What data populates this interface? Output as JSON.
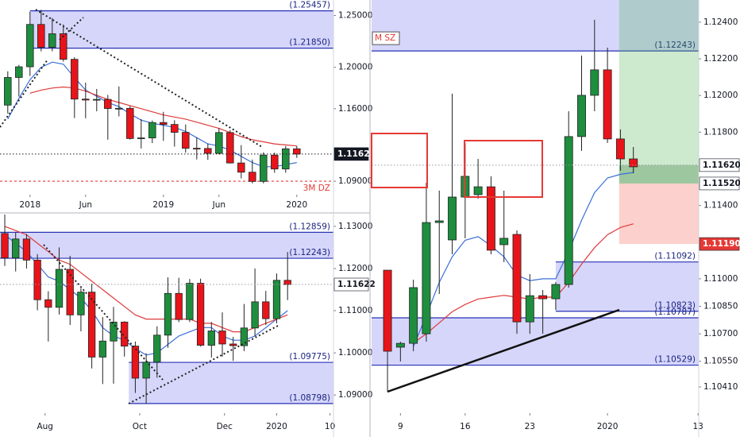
{
  "chart_data": [
    {
      "type": "candlestick",
      "categories": [
        null,
        null,
        null,
        null,
        null,
        null,
        null,
        null,
        null,
        null,
        null,
        null,
        null,
        null,
        null,
        null,
        null,
        null,
        null,
        null,
        null,
        null,
        null,
        null,
        null,
        null,
        null
      ],
      "open": [
        1.1635,
        1.1902,
        1.2005,
        1.2414,
        1.2193,
        1.2324,
        1.2077,
        1.1693,
        1.1684,
        1.169,
        1.1602,
        1.1604,
        1.1312,
        1.1318,
        1.1467,
        1.1448,
        1.1372,
        1.1218,
        1.1216,
        1.1169,
        1.137,
        1.1076,
        1.0987,
        1.0898,
        1.1152,
        1.1018,
        1.1213
      ],
      "high": [
        1.1961,
        1.2023,
        1.2537,
        1.2555,
        1.2476,
        1.2414,
        1.2097,
        1.1852,
        1.1791,
        1.1733,
        1.1815,
        1.1625,
        1.15,
        1.1486,
        1.157,
        1.1489,
        1.1448,
        1.1324,
        1.1264,
        1.1412,
        1.1393,
        1.1249,
        1.1109,
        1.1179,
        1.1176,
        1.124,
        1.1239
      ],
      "low": [
        1.1554,
        1.1718,
        1.1916,
        1.2154,
        1.2155,
        1.2055,
        1.151,
        1.1508,
        1.1575,
        1.1301,
        1.1526,
        1.1302,
        1.1216,
        1.1268,
        1.1289,
        1.1234,
        1.1176,
        1.111,
        1.1106,
        1.116,
        1.1071,
        1.0927,
        1.0879,
        1.0879,
        1.0981,
        1.0981,
        1.1125
      ],
      "close": [
        1.1902,
        1.2005,
        1.2414,
        1.2193,
        1.2324,
        1.2077,
        1.1693,
        1.1684,
        1.169,
        1.1602,
        1.1604,
        1.1312,
        1.1318,
        1.1467,
        1.1448,
        1.1372,
        1.1218,
        1.1216,
        1.1169,
        1.137,
        1.1076,
        1.0987,
        1.0898,
        1.1152,
        1.1018,
        1.1213,
        1.1162
      ],
      "up_color": "#1e8e3e",
      "down_color": "#e8141a",
      "lines": [
        {
          "color": "#3a6fd8",
          "values": [
            1.15,
            1.17,
            1.188,
            1.2,
            1.205,
            1.203,
            1.19,
            1.178,
            1.172,
            1.166,
            1.162,
            1.155,
            1.149,
            1.146,
            1.144,
            1.142,
            1.138,
            1.132,
            1.126,
            1.124,
            1.12,
            1.114,
            1.108,
            1.104,
            1.104,
            1.106,
            1.108
          ]
        },
        {
          "color": "#e03a3a",
          "values": [
            null,
            null,
            1.175,
            1.178,
            1.18,
            1.181,
            1.18,
            1.177,
            1.173,
            1.169,
            1.166,
            1.163,
            1.16,
            1.157,
            1.154,
            1.152,
            1.15,
            1.147,
            1.144,
            1.141,
            1.137,
            1.133,
            1.13,
            1.128,
            1.126,
            1.125,
            1.124
          ]
        }
      ],
      "zones": [
        {
          "top": {
            "value": 1.25457,
            "label": "(1.25457)"
          },
          "bottom": {
            "value": 1.2185,
            "label": "(1.21850)"
          },
          "from": 2,
          "fill": "#b4b4f7",
          "stroke": "#2832b4"
        }
      ],
      "levels": [
        {
          "value": 1.09,
          "label": "3M DZ",
          "color": "#e53935"
        }
      ],
      "last": 1.11622,
      "xlim": [
        -0.7,
        29.3
      ],
      "ylim": [
        1.077,
        1.265
      ],
      "xticks": [
        {
          "value": 2,
          "label": "2018"
        },
        {
          "value": 7,
          "label": "Jun"
        },
        {
          "value": 14,
          "label": "2019"
        },
        {
          "value": 19,
          "label": "Jun"
        },
        {
          "value": 26,
          "label": "2020"
        }
      ],
      "yticks": [
        {
          "value": 1.25,
          "label": "1.25000"
        },
        {
          "value": 1.2,
          "label": "1.20000"
        },
        {
          "value": 1.16,
          "label": "1.16000"
        },
        {
          "value": 1.09,
          "label": "1.09000"
        }
      ]
    },
    {
      "type": "candlestick",
      "categories": [
        null,
        null,
        null,
        null,
        null,
        null,
        null,
        null,
        null,
        null,
        null,
        null,
        null,
        null,
        null,
        null,
        null,
        null,
        null,
        null,
        null,
        null,
        null,
        null,
        null,
        null,
        null
      ],
      "open": [
        1.1283,
        1.1225,
        1.127,
        1.122,
        1.1126,
        1.1108,
        1.1198,
        1.109,
        1.1144,
        1.099,
        1.1028,
        1.1073,
        1.1016,
        1.094,
        1.0978,
        1.1042,
        1.1141,
        1.1079,
        1.1165,
        1.1018,
        1.1052,
        1.1021,
        1.1017,
        1.1059,
        1.1121,
        1.1081,
        1.1172
      ],
      "high": [
        1.1336,
        1.1286,
        1.1282,
        1.1234,
        1.1146,
        1.125,
        1.123,
        1.1153,
        1.1164,
        1.1085,
        1.1109,
        1.1075,
        1.1027,
        1.0999,
        1.1063,
        1.1179,
        1.1178,
        1.1175,
        1.1176,
        1.1073,
        1.1096,
        1.1038,
        1.1116,
        1.12,
        1.1147,
        1.1188,
        1.1239
      ],
      "low": [
        1.1206,
        1.1193,
        1.12,
        1.1101,
        1.1027,
        1.1091,
        1.1066,
        1.1051,
        1.0963,
        1.0926,
        1.0927,
        1.0991,
        1.0905,
        1.0879,
        1.0941,
        1.1012,
        1.1073,
        1.1073,
        1.1015,
        1.0989,
        1.0991,
        1.0981,
        1.1004,
        1.1039,
        1.1066,
        1.107,
        1.1125
      ],
      "close": [
        1.1225,
        1.127,
        1.122,
        1.1126,
        1.1108,
        1.1198,
        1.109,
        1.1144,
        1.099,
        1.1028,
        1.1073,
        1.1016,
        1.094,
        1.0978,
        1.1042,
        1.1141,
        1.1079,
        1.1165,
        1.1018,
        1.1052,
        1.1021,
        1.1017,
        1.1059,
        1.1121,
        1.1081,
        1.1172,
        1.1162
      ],
      "up_color": "#1e8e3e",
      "down_color": "#e8141a",
      "lines": [
        {
          "color": "#3a6fd8",
          "values": [
            1.128,
            1.126,
            1.124,
            1.121,
            1.118,
            1.117,
            1.115,
            1.113,
            1.11,
            1.106,
            1.104,
            1.103,
            1.101,
            1.0995,
            1.1,
            1.102,
            1.104,
            1.105,
            1.106,
            1.106,
            1.104,
            1.103,
            1.103,
            1.104,
            1.106,
            1.108,
            1.11
          ]
        },
        {
          "color": "#e03a3a",
          "values": [
            1.13,
            1.129,
            1.128,
            1.126,
            1.124,
            1.122,
            1.121,
            1.119,
            1.117,
            1.115,
            1.113,
            1.111,
            1.109,
            1.108,
            1.108,
            1.108,
            1.108,
            1.108,
            1.107,
            1.107,
            1.106,
            1.105,
            1.105,
            1.106,
            1.107,
            1.108,
            1.109
          ]
        }
      ],
      "zones": [
        {
          "top": {
            "value": 1.12859,
            "label": "(1.12859)"
          },
          "bottom": {
            "value": 1.12243,
            "label": "(1.12243)"
          },
          "fill": "#b4b4f7",
          "stroke": "#2832b4"
        },
        {
          "top": {
            "value": 1.09775,
            "label": "(1.09775)"
          },
          "bottom": {
            "value": 1.08798,
            "label": "(1.08798)"
          },
          "from": 11.4,
          "fill": "#b4b4f7",
          "stroke": "#2832b4"
        }
      ],
      "levels": [],
      "last": 1.11622,
      "xlim": [
        -0.44,
        30.22
      ],
      "ylim": [
        1.0857,
        1.1328
      ],
      "xticks": [
        {
          "value": 3.7,
          "label": "Aug"
        },
        {
          "value": 12.4,
          "label": "Oct"
        },
        {
          "value": 20.2,
          "label": "Dec"
        },
        {
          "value": 25,
          "label": "2020"
        },
        {
          "value": 29.9,
          "label": "10"
        }
      ],
      "yticks": [
        {
          "value": 1.13,
          "label": "1.13000"
        },
        {
          "value": 1.12,
          "label": "1.12000"
        },
        {
          "value": 1.11,
          "label": "1.11000"
        },
        {
          "value": 1.1,
          "label": "1.10000"
        },
        {
          "value": 1.09,
          "label": "1.09000"
        }
      ]
    },
    {
      "type": "candlestick",
      "categories": [
        null,
        null,
        null,
        null,
        null,
        null,
        null,
        null,
        null,
        null,
        null,
        null,
        null,
        null,
        null,
        null,
        null,
        null,
        null,
        null
      ],
      "open": [
        1.11047,
        1.10627,
        1.10648,
        1.107,
        1.11307,
        1.11212,
        1.11446,
        1.11459,
        1.11502,
        1.11186,
        1.11242,
        1.10765,
        1.10908,
        1.10891,
        1.10969,
        1.11776,
        1.12001,
        1.1214,
        1.11763,
        1.11654
      ],
      "high": [
        1.11047,
        1.10657,
        1.10995,
        1.11524,
        1.11481,
        1.1201,
        1.11741,
        1.11654,
        1.11559,
        1.11481,
        1.11264,
        1.11026,
        1.10939,
        1.10982,
        1.11914,
        1.12218,
        1.12413,
        1.12261,
        1.11815,
        1.11719
      ],
      "low": [
        1.10384,
        1.10549,
        1.10605,
        1.10657,
        1.10917,
        1.11134,
        1.11221,
        1.11437,
        1.11134,
        1.11091,
        1.107,
        1.107,
        1.107,
        1.1083,
        1.10952,
        1.11698,
        1.11914,
        1.11741,
        1.11589,
        1.11576
      ],
      "close": [
        1.10605,
        1.10648,
        1.10952,
        1.11307,
        1.11316,
        1.11446,
        1.11559,
        1.11502,
        1.11156,
        1.11221,
        1.10765,
        1.10908,
        1.10891,
        1.10969,
        1.11776,
        1.12001,
        1.1214,
        1.11763,
        1.11654,
        1.11611
      ],
      "up_color": "#1e8e3e",
      "down_color": "#e8141a",
      "lines": [
        {
          "color": "#3a6fd8",
          "values": [
            null,
            null,
            1.1063,
            1.108,
            1.1098,
            1.1112,
            1.1121,
            1.1123,
            1.1118,
            1.1112,
            1.1102,
            1.1099,
            1.11,
            1.11,
            1.1115,
            1.1132,
            1.1147,
            1.1155,
            1.1157,
            1.1158
          ]
        },
        {
          "color": "#e03a3a",
          "values": [
            null,
            null,
            1.1065,
            1.107,
            1.1076,
            1.1082,
            1.1086,
            1.1089,
            1.109,
            1.1091,
            1.109,
            1.1089,
            1.109,
            1.109,
            1.1098,
            1.1108,
            1.1117,
            1.1124,
            1.1128,
            1.113
          ]
        }
      ],
      "zones": [
        {
          "bottom": {
            "value": 1.12243,
            "label": "(1.12243)"
          },
          "label": "M SZ",
          "fill": "#b4b4f7",
          "stroke": "#2832b4"
        },
        {
          "top": {
            "value": 1.11092,
            "label": "(1.11092)"
          },
          "bottom": {
            "value": 1.10823,
            "label": "(1.10823)"
          },
          "from": 13,
          "fill": "#b4b4f7",
          "stroke": "#2832b4"
        },
        {
          "top": {
            "value": 1.10787,
            "label": "(1.10787)"
          },
          "bottom": {
            "value": 1.10529,
            "label": "(1.10529)"
          },
          "fill": "#b4b4f7",
          "stroke": "#2832b4"
        }
      ],
      "levels": [],
      "position": {
        "entry": {
          "value": 1.1152,
          "label": "1.11520"
        },
        "stop": {
          "value": 1.1119,
          "label": "1.11190"
        },
        "from": 17.9
      },
      "last": {
        "value": 1.1162,
        "label": "1.11620"
      },
      "xlim": [
        -1.23,
        24.05
      ],
      "ylim": [
        1.10267,
        1.12521
      ],
      "xticks": [
        {
          "value": 1,
          "label": "9"
        },
        {
          "value": 6,
          "label": "16"
        },
        {
          "value": 11,
          "label": "23"
        },
        {
          "value": 17,
          "label": "2020"
        },
        {
          "value": 24,
          "label": "13"
        }
      ],
      "yticks": [
        {
          "value": 1.124,
          "label": "1.12400"
        },
        {
          "value": 1.122,
          "label": "1.12200"
        },
        {
          "value": 1.12,
          "label": "1.12000"
        },
        {
          "value": 1.118,
          "label": "1.11800"
        },
        {
          "value": 1.114,
          "label": "1.11400"
        },
        {
          "value": 1.11,
          "label": "1.11000"
        },
        {
          "value": 1.1085,
          "label": "1.10850"
        },
        {
          "value": 1.107,
          "label": "1.10700"
        },
        {
          "value": 1.1055,
          "label": "1.10550"
        },
        {
          "value": 1.1041,
          "label": "1.10410"
        }
      ]
    }
  ]
}
